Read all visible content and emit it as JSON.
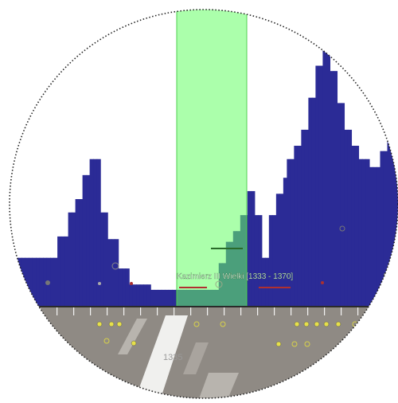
{
  "timeline": {
    "highlight_label": "Kazimierz III Wielki [1333 - 1370]",
    "axis_year_label": "1335"
  },
  "chart_data": {
    "type": "bar",
    "description_units": "histogram of event density over years (relative height, 0-1)",
    "values": [
      0.02,
      0.02,
      0.18,
      0.18,
      0.18,
      0.18,
      0.18,
      0.18,
      0.18,
      0.18,
      0.18,
      0.18,
      0.18,
      0.18,
      0.18,
      0.18,
      0.26,
      0.26,
      0.26,
      0.35,
      0.35,
      0.4,
      0.4,
      0.49,
      0.49,
      0.55,
      0.55,
      0.55,
      0.35,
      0.35,
      0.25,
      0.25,
      0.25,
      0.14,
      0.14,
      0.14,
      0.08,
      0.08,
      0.08,
      0.08,
      0.08,
      0.08,
      0.06,
      0.06,
      0.06,
      0.06,
      0.06,
      0.06,
      0.06,
      0.06,
      0.06,
      0.06,
      0.06,
      0.06,
      0.06,
      0.06,
      0.06,
      0.06,
      0.06,
      0.06,
      0.06,
      0.16,
      0.16,
      0.24,
      0.24,
      0.28,
      0.28,
      0.34,
      0.34,
      0.43,
      0.43,
      0.34,
      0.34,
      0.18,
      0.18,
      0.34,
      0.34,
      0.42,
      0.42,
      0.48,
      0.55,
      0.55,
      0.6,
      0.6,
      0.66,
      0.66,
      0.78,
      0.78,
      0.9,
      0.9,
      1.0,
      1.0,
      0.88,
      0.88,
      0.76,
      0.76,
      0.66,
      0.66,
      0.6,
      0.6,
      0.55,
      0.55,
      0.55,
      0.52,
      0.52,
      0.52,
      0.58,
      0.58,
      0.62,
      0.62,
      0.62
    ]
  },
  "colors": {
    "bars": "#2b2b96",
    "highlight": "#66ff66",
    "ground": "#8f8a84",
    "axis": "#2a2a2a"
  }
}
